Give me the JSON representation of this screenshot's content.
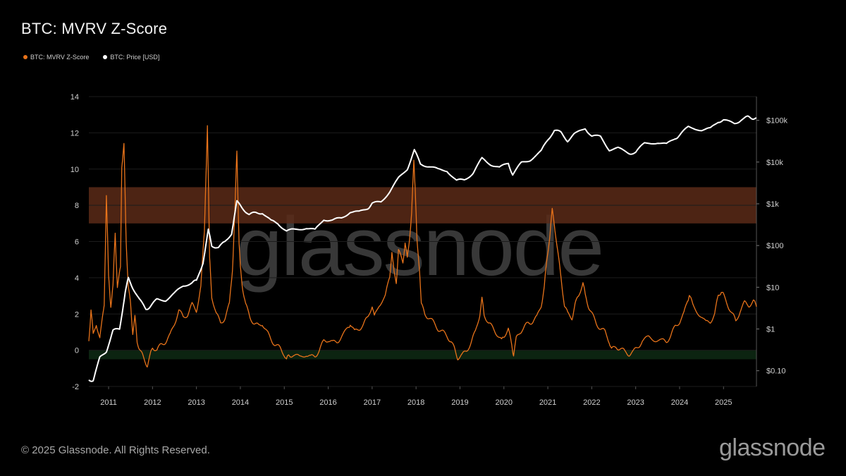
{
  "title": "BTC: MVRV Z-Score",
  "legend": [
    {
      "label": "BTC: MVRV Z-Score",
      "color": "#e8731a"
    },
    {
      "label": "BTC: Price [USD]",
      "color": "#ffffff"
    }
  ],
  "footer": "© 2025 Glassnode. All Rights Reserved.",
  "brand": "glassnode",
  "watermark": "glassnode",
  "chart_data": {
    "type": "line",
    "title": "BTC: MVRV Z-Score",
    "x_ticks": [
      "2011",
      "2012",
      "2013",
      "2014",
      "2015",
      "2016",
      "2017",
      "2018",
      "2019",
      "2020",
      "2021",
      "2022",
      "2023",
      "2024",
      "2025"
    ],
    "xlim": [
      2010.55,
      2025.75
    ],
    "y_left": {
      "ticks": [
        -2,
        0,
        2,
        4,
        6,
        8,
        10,
        12,
        14
      ],
      "ylim": [
        -2,
        14
      ]
    },
    "y_right": {
      "ticks": [
        "$0.10",
        "$1",
        "$10",
        "$100",
        "$1k",
        "$10k",
        "$100k"
      ],
      "values": [
        0.1,
        1,
        10,
        100,
        1000,
        10000,
        100000
      ],
      "scale": "log"
    },
    "bands": [
      {
        "from": 7,
        "to": 9,
        "color": "#5a2a18"
      },
      {
        "from": -0.5,
        "to": 0,
        "color": "#0e2a14"
      }
    ],
    "series": [
      {
        "name": "BTC: MVRV Z-Score",
        "color": "#e8731a",
        "axis": "left",
        "points": [
          [
            2010.55,
            0.5
          ],
          [
            2010.6,
            2.3
          ],
          [
            2010.65,
            0.8
          ],
          [
            2010.72,
            1.5
          ],
          [
            2010.8,
            0.6
          ],
          [
            2010.9,
            2.5
          ],
          [
            2010.95,
            8.6
          ],
          [
            2011.0,
            4.0
          ],
          [
            2011.05,
            2.5
          ],
          [
            2011.1,
            3.5
          ],
          [
            2011.15,
            6.5
          ],
          [
            2011.2,
            3.5
          ],
          [
            2011.27,
            4.5
          ],
          [
            2011.3,
            10.2
          ],
          [
            2011.35,
            11.3
          ],
          [
            2011.4,
            6.0
          ],
          [
            2011.45,
            3.5
          ],
          [
            2011.5,
            2.5
          ],
          [
            2011.55,
            1.0
          ],
          [
            2011.6,
            1.8
          ],
          [
            2011.65,
            0.5
          ],
          [
            2011.72,
            0.0
          ],
          [
            2011.8,
            -0.5
          ],
          [
            2011.88,
            -0.8
          ],
          [
            2011.95,
            -0.3
          ],
          [
            2012.0,
            0.2
          ],
          [
            2012.1,
            0.0
          ],
          [
            2012.2,
            0.3
          ],
          [
            2012.3,
            0.5
          ],
          [
            2012.4,
            0.8
          ],
          [
            2012.5,
            1.5
          ],
          [
            2012.6,
            2.2
          ],
          [
            2012.7,
            1.8
          ],
          [
            2012.8,
            2.0
          ],
          [
            2012.9,
            2.5
          ],
          [
            2013.0,
            2.2
          ],
          [
            2013.1,
            3.5
          ],
          [
            2013.18,
            6.5
          ],
          [
            2013.25,
            12.5
          ],
          [
            2013.3,
            5.0
          ],
          [
            2013.35,
            3.0
          ],
          [
            2013.45,
            2.0
          ],
          [
            2013.55,
            1.5
          ],
          [
            2013.65,
            1.8
          ],
          [
            2013.75,
            2.5
          ],
          [
            2013.82,
            4.5
          ],
          [
            2013.88,
            8.0
          ],
          [
            2013.92,
            11.0
          ],
          [
            2013.97,
            6.0
          ],
          [
            2014.0,
            4.5
          ],
          [
            2014.05,
            3.5
          ],
          [
            2014.12,
            2.5
          ],
          [
            2014.22,
            1.8
          ],
          [
            2014.32,
            1.5
          ],
          [
            2014.42,
            1.3
          ],
          [
            2014.5,
            1.5
          ],
          [
            2014.6,
            1.0
          ],
          [
            2014.7,
            0.6
          ],
          [
            2014.8,
            0.3
          ],
          [
            2014.9,
            0.1
          ],
          [
            2015.0,
            -0.2
          ],
          [
            2015.05,
            -0.6
          ],
          [
            2015.1,
            -0.2
          ],
          [
            2015.2,
            -0.3
          ],
          [
            2015.35,
            -0.4
          ],
          [
            2015.5,
            -0.2
          ],
          [
            2015.6,
            -0.4
          ],
          [
            2015.7,
            -0.3
          ],
          [
            2015.8,
            0.0
          ],
          [
            2015.9,
            0.5
          ],
          [
            2016.0,
            0.6
          ],
          [
            2016.1,
            0.4
          ],
          [
            2016.2,
            0.5
          ],
          [
            2016.3,
            0.7
          ],
          [
            2016.45,
            1.2
          ],
          [
            2016.5,
            1.5
          ],
          [
            2016.6,
            1.0
          ],
          [
            2016.7,
            1.2
          ],
          [
            2016.8,
            1.4
          ],
          [
            2016.9,
            1.8
          ],
          [
            2017.0,
            2.5
          ],
          [
            2017.05,
            1.8
          ],
          [
            2017.15,
            2.5
          ],
          [
            2017.3,
            3.0
          ],
          [
            2017.4,
            4.0
          ],
          [
            2017.45,
            5.5
          ],
          [
            2017.5,
            4.2
          ],
          [
            2017.55,
            3.8
          ],
          [
            2017.6,
            5.5
          ],
          [
            2017.7,
            4.8
          ],
          [
            2017.75,
            6.0
          ],
          [
            2017.8,
            5.0
          ],
          [
            2017.85,
            6.2
          ],
          [
            2017.9,
            7.5
          ],
          [
            2017.95,
            10.5
          ],
          [
            2017.98,
            9.0
          ],
          [
            2018.02,
            6.0
          ],
          [
            2018.08,
            4.5
          ],
          [
            2018.12,
            2.5
          ],
          [
            2018.2,
            2.0
          ],
          [
            2018.3,
            1.8
          ],
          [
            2018.4,
            1.5
          ],
          [
            2018.5,
            1.2
          ],
          [
            2018.6,
            1.0
          ],
          [
            2018.7,
            0.8
          ],
          [
            2018.8,
            0.5
          ],
          [
            2018.88,
            0.0
          ],
          [
            2018.95,
            -0.4
          ],
          [
            2019.05,
            -0.3
          ],
          [
            2019.15,
            0.0
          ],
          [
            2019.25,
            0.4
          ],
          [
            2019.35,
            1.0
          ],
          [
            2019.45,
            2.0
          ],
          [
            2019.5,
            2.8
          ],
          [
            2019.55,
            2.0
          ],
          [
            2019.65,
            1.5
          ],
          [
            2019.75,
            1.2
          ],
          [
            2019.85,
            0.9
          ],
          [
            2019.95,
            0.5
          ],
          [
            2020.0,
            0.8
          ],
          [
            2020.1,
            1.2
          ],
          [
            2020.18,
            0.2
          ],
          [
            2020.22,
            -0.2
          ],
          [
            2020.28,
            0.6
          ],
          [
            2020.35,
            1.0
          ],
          [
            2020.45,
            1.2
          ],
          [
            2020.55,
            1.5
          ],
          [
            2020.65,
            1.6
          ],
          [
            2020.75,
            1.8
          ],
          [
            2020.85,
            2.5
          ],
          [
            2020.92,
            3.5
          ],
          [
            2020.98,
            5.0
          ],
          [
            2021.05,
            6.5
          ],
          [
            2021.1,
            7.7
          ],
          [
            2021.15,
            7.0
          ],
          [
            2021.22,
            5.5
          ],
          [
            2021.3,
            4.0
          ],
          [
            2021.38,
            2.5
          ],
          [
            2021.45,
            2.0
          ],
          [
            2021.55,
            1.8
          ],
          [
            2021.62,
            2.5
          ],
          [
            2021.7,
            3.0
          ],
          [
            2021.8,
            3.8
          ],
          [
            2021.85,
            3.0
          ],
          [
            2021.92,
            2.5
          ],
          [
            2022.0,
            2.0
          ],
          [
            2022.1,
            1.5
          ],
          [
            2022.2,
            1.2
          ],
          [
            2022.3,
            1.0
          ],
          [
            2022.4,
            0.5
          ],
          [
            2022.45,
            0.0
          ],
          [
            2022.55,
            0.2
          ],
          [
            2022.65,
            0.1
          ],
          [
            2022.75,
            -0.1
          ],
          [
            2022.85,
            -0.2
          ],
          [
            2022.95,
            -0.1
          ],
          [
            2023.05,
            0.2
          ],
          [
            2023.15,
            0.5
          ],
          [
            2023.3,
            0.7
          ],
          [
            2023.45,
            0.6
          ],
          [
            2023.6,
            0.5
          ],
          [
            2023.7,
            0.5
          ],
          [
            2023.8,
            0.8
          ],
          [
            2023.9,
            1.3
          ],
          [
            2024.0,
            1.6
          ],
          [
            2024.1,
            2.0
          ],
          [
            2024.18,
            2.8
          ],
          [
            2024.22,
            3.0
          ],
          [
            2024.3,
            2.5
          ],
          [
            2024.45,
            2.0
          ],
          [
            2024.6,
            1.5
          ],
          [
            2024.7,
            1.6
          ],
          [
            2024.8,
            2.0
          ],
          [
            2024.88,
            3.0
          ],
          [
            2024.95,
            3.3
          ],
          [
            2025.0,
            3.0
          ],
          [
            2025.1,
            2.5
          ],
          [
            2025.2,
            2.0
          ],
          [
            2025.28,
            1.6
          ],
          [
            2025.38,
            2.2
          ],
          [
            2025.48,
            2.6
          ],
          [
            2025.58,
            2.5
          ],
          [
            2025.68,
            2.7
          ],
          [
            2025.75,
            2.4
          ]
        ]
      },
      {
        "name": "BTC: Price [USD]",
        "color": "#ffffff",
        "axis": "right",
        "points": [
          [
            2010.55,
            0.06
          ],
          [
            2010.65,
            0.06
          ],
          [
            2010.8,
            0.2
          ],
          [
            2010.95,
            0.3
          ],
          [
            2011.1,
            0.9
          ],
          [
            2011.25,
            1.0
          ],
          [
            2011.38,
            8.0
          ],
          [
            2011.45,
            16.0
          ],
          [
            2011.55,
            10.0
          ],
          [
            2011.7,
            5.0
          ],
          [
            2011.85,
            3.0
          ],
          [
            2011.95,
            3.5
          ],
          [
            2012.1,
            5.0
          ],
          [
            2012.3,
            5.0
          ],
          [
            2012.5,
            7.0
          ],
          [
            2012.7,
            11.0
          ],
          [
            2012.9,
            13.0
          ],
          [
            2013.0,
            14.0
          ],
          [
            2013.15,
            40.0
          ],
          [
            2013.27,
            230.0
          ],
          [
            2013.35,
            100.0
          ],
          [
            2013.5,
            90.0
          ],
          [
            2013.65,
            120.0
          ],
          [
            2013.8,
            200.0
          ],
          [
            2013.92,
            1100.0
          ],
          [
            2014.05,
            800.0
          ],
          [
            2014.2,
            550.0
          ],
          [
            2014.35,
            600.0
          ],
          [
            2014.5,
            620.0
          ],
          [
            2014.7,
            380.0
          ],
          [
            2014.85,
            350.0
          ],
          [
            2015.05,
            220.0
          ],
          [
            2015.25,
            240.0
          ],
          [
            2015.5,
            270.0
          ],
          [
            2015.7,
            230.0
          ],
          [
            2015.9,
            430.0
          ],
          [
            2016.1,
            400.0
          ],
          [
            2016.3,
            450.0
          ],
          [
            2016.5,
            650.0
          ],
          [
            2016.7,
            620.0
          ],
          [
            2016.9,
            800.0
          ],
          [
            2017.0,
            1000.0
          ],
          [
            2017.2,
            1100.0
          ],
          [
            2017.4,
            2000.0
          ],
          [
            2017.6,
            4000.0
          ],
          [
            2017.8,
            7000.0
          ],
          [
            2017.96,
            19000.0
          ],
          [
            2018.1,
            9000.0
          ],
          [
            2018.3,
            8000.0
          ],
          [
            2018.5,
            6500.0
          ],
          [
            2018.7,
            6400.0
          ],
          [
            2018.92,
            3500.0
          ],
          [
            2019.1,
            3800.0
          ],
          [
            2019.3,
            5500.0
          ],
          [
            2019.5,
            12000.0
          ],
          [
            2019.7,
            9000.0
          ],
          [
            2019.9,
            7200.0
          ],
          [
            2020.1,
            9500.0
          ],
          [
            2020.2,
            5000.0
          ],
          [
            2020.4,
            9500.0
          ],
          [
            2020.6,
            11500.0
          ],
          [
            2020.85,
            18000.0
          ],
          [
            2021.0,
            35000.0
          ],
          [
            2021.15,
            58000.0
          ],
          [
            2021.3,
            50000.0
          ],
          [
            2021.45,
            33000.0
          ],
          [
            2021.6,
            45000.0
          ],
          [
            2021.85,
            65000.0
          ],
          [
            2022.0,
            42000.0
          ],
          [
            2022.2,
            40000.0
          ],
          [
            2022.4,
            20000.0
          ],
          [
            2022.6,
            21000.0
          ],
          [
            2022.85,
            16500.0
          ],
          [
            2023.0,
            17000.0
          ],
          [
            2023.2,
            28000.0
          ],
          [
            2023.5,
            30000.0
          ],
          [
            2023.7,
            26000.0
          ],
          [
            2023.9,
            38000.0
          ],
          [
            2024.0,
            43000.0
          ],
          [
            2024.2,
            70000.0
          ],
          [
            2024.5,
            60000.0
          ],
          [
            2024.7,
            62000.0
          ],
          [
            2024.88,
            95000.0
          ],
          [
            2025.0,
            100000.0
          ],
          [
            2025.25,
            82000.0
          ],
          [
            2025.4,
            105000.0
          ],
          [
            2025.55,
            118000.0
          ],
          [
            2025.65,
            115000.0
          ],
          [
            2025.75,
            112000.0
          ]
        ]
      }
    ]
  }
}
